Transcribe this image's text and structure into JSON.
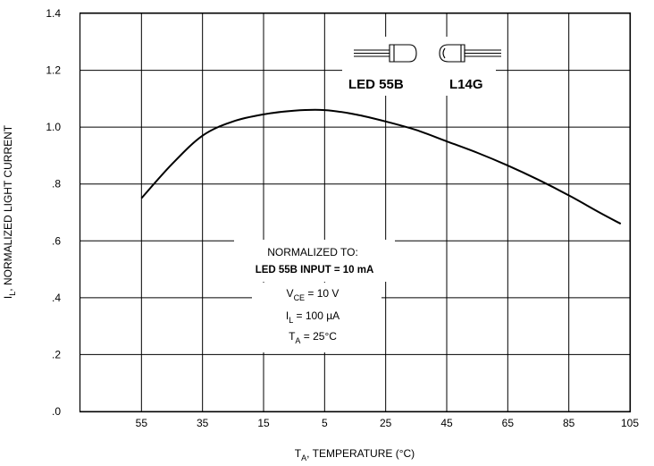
{
  "chart_data": {
    "type": "line",
    "xlabel": {
      "main": "T",
      "sub": "A",
      "rest": ", TEMPERATURE (°C)"
    },
    "ylabel": {
      "main": "I",
      "sub": "L",
      "rest": ", NORMALIZED LIGHT CURRENT"
    },
    "x_tick_labels": [
      "55",
      "35",
      "15",
      "5",
      "25",
      "45",
      "65",
      "85",
      "105"
    ],
    "y_ticks": [
      0,
      0.2,
      0.4,
      0.6,
      0.8,
      1.0,
      1.2,
      1.4
    ],
    "y_tick_labels": [
      ".0",
      ".2",
      ".4",
      ".6",
      ".8",
      "1.0",
      "1.2",
      "1.4"
    ],
    "ylim": [
      0,
      1.4
    ],
    "x_tick_values": [
      -55,
      -35,
      -15,
      5,
      25,
      45,
      65,
      85,
      105
    ],
    "xlim": [
      -75,
      105
    ],
    "grid": true,
    "series": [
      {
        "x": [
          -55,
          -45,
          -35,
          -25,
          -15,
          -5,
          5,
          15,
          25,
          35,
          45,
          55,
          65,
          75,
          85,
          95,
          102
        ],
        "y": [
          0.75,
          0.87,
          0.97,
          1.02,
          1.045,
          1.058,
          1.06,
          1.045,
          1.02,
          0.99,
          0.95,
          0.91,
          0.865,
          0.815,
          0.76,
          0.7,
          0.66
        ]
      }
    ],
    "annotations": {
      "normalized_to": "NORMALIZED TO:",
      "input": "LED 55B INPUT = 10 mA",
      "vce": {
        "main": "V",
        "sub": "CE",
        "rest": " = 10 V"
      },
      "il": {
        "main": "I",
        "sub": "L",
        "rest": " = 100 µA"
      },
      "ta": {
        "main": "T",
        "sub": "A",
        "rest": " = 25°C"
      }
    },
    "devices": [
      "LED 55B",
      "L14G"
    ]
  }
}
